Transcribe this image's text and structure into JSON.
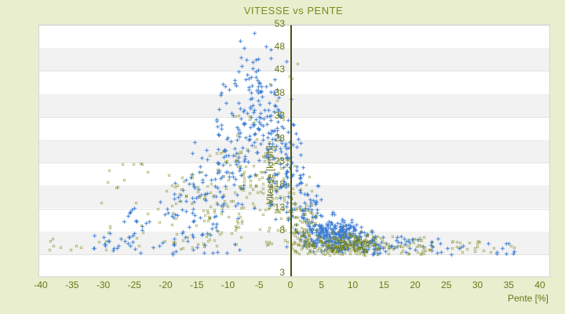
{
  "chart_data": {
    "type": "scatter",
    "title": "VITESSE vs PENTE",
    "xlabel": "Pente [%]",
    "ylabel": "Vitesse [km/h]",
    "x_ticks": [
      -40,
      -35,
      -30,
      -25,
      -20,
      -15,
      -10,
      -5,
      0,
      5,
      10,
      15,
      20,
      25,
      30,
      35,
      40
    ],
    "y_ticks": [
      53,
      48,
      43,
      38,
      33,
      28,
      23,
      18,
      13,
      8
    ],
    "y_axis_min_label": "3",
    "xlim": [
      -40.4,
      41.4
    ],
    "ylim": [
      -1.8,
      53
    ],
    "grid": "horizontal-bands-alternating",
    "legend": "none",
    "zero_line_x": 0,
    "seed": 1337,
    "series": [
      {
        "id": "blue-speed-points",
        "marker": "plus",
        "color": "#3E7FD4",
        "clusters": [
          {
            "n": 14,
            "x": [
              "u",
              -33,
              -26
            ],
            "y": [
              "u",
              3.5,
              8
            ]
          },
          {
            "n": 22,
            "x": [
              "u",
              -27,
              -20
            ],
            "y": [
              "u",
              4,
              15
            ]
          },
          {
            "n": 34,
            "x": [
              "u",
              -21,
              -15
            ],
            "y": [
              "u",
              5,
              21
            ]
          },
          {
            "n": 48,
            "x": [
              "u",
              -16,
              -11
            ],
            "y": [
              "n",
              17,
              5,
              5,
              29
            ]
          },
          {
            "n": 75,
            "x": [
              "u",
              -12,
              -7.5
            ],
            "y": [
              "n",
              25,
              7,
              8,
              42
            ]
          },
          {
            "n": 115,
            "x": [
              "n",
              -6,
              1.8,
              -10,
              -2.5
            ],
            "y": [
              "n",
              34,
              8.5,
              13,
              52.5
            ]
          },
          {
            "n": 85,
            "x": [
              "u",
              -4,
              -0.5
            ],
            "y": [
              "n",
              27,
              9,
              8,
              48
            ]
          },
          {
            "n": 55,
            "x": [
              "u",
              -1,
              2
            ],
            "y": [
              "n",
              17,
              8,
              4,
              38
            ]
          },
          {
            "n": 55,
            "x": [
              "u",
              1.5,
              5
            ],
            "y": [
              "n",
              11,
              5.5,
              3.5,
              33
            ]
          },
          {
            "n": 280,
            "x": [
              "n",
              7,
              2.4,
              1.5,
              14
            ],
            "y": [
              "n",
              7.2,
              1.8,
              3.5,
              13
            ]
          },
          {
            "n": 60,
            "x": [
              "n",
              10.5,
              3,
              4,
              18
            ],
            "y": [
              "n",
              5.8,
              1.4,
              3,
              10
            ]
          },
          {
            "n": 42,
            "x": [
              "u",
              12,
              26
            ],
            "y": [
              "u",
              3,
              6.5
            ]
          },
          {
            "n": 12,
            "x": [
              "u",
              26,
              36.5
            ],
            "y": [
              "u",
              3,
              5.5
            ]
          },
          {
            "n": 16,
            "x": [
              "u",
              -31,
              -4
            ],
            "y": [
              "u",
              3,
              5.5
            ]
          }
        ]
      },
      {
        "id": "olive-speed-points",
        "marker": "x",
        "color": "#6D7A1A",
        "center_color": "#C2CD4A",
        "clusters": [
          {
            "n": 9,
            "x": [
              "u",
              -40.4,
              -30
            ],
            "y": [
              "u",
              4,
              6.5
            ]
          },
          {
            "n": 26,
            "x": [
              "u",
              -31,
              -20
            ],
            "y": [
              "u",
              4,
              23
            ]
          },
          {
            "n": 42,
            "x": [
              "u",
              -20,
              -13
            ],
            "y": [
              "u",
              4,
              21
            ]
          },
          {
            "n": 52,
            "x": [
              "u",
              -14,
              -8
            ],
            "y": [
              "u",
              4.5,
              26
            ]
          },
          {
            "n": 65,
            "x": [
              "u",
              -9,
              -4
            ],
            "y": [
              "n",
              19,
              7,
              4,
              35
            ]
          },
          {
            "n": 60,
            "x": [
              "u",
              -4,
              0.5
            ],
            "y": [
              "n",
              14,
              7,
              3.5,
              33
            ]
          },
          {
            "n": 85,
            "x": [
              "u",
              0,
              4
            ],
            "y": [
              "n",
              8,
              4,
              3,
              24
            ]
          },
          {
            "n": 230,
            "x": [
              "n",
              8,
              3.4,
              0.5,
              17
            ],
            "y": [
              "n",
              5,
              1.4,
              2.8,
              9.5
            ]
          },
          {
            "n": 65,
            "x": [
              "u",
              10,
              22
            ],
            "y": [
              "u",
              3,
              7
            ]
          },
          {
            "n": 24,
            "x": [
              "u",
              22,
              33
            ],
            "y": [
              "u",
              3,
              6
            ]
          },
          {
            "n": 7,
            "x": [
              "u",
              -4,
              2
            ],
            "y": [
              "u",
              32,
              45
            ]
          },
          {
            "n": 2,
            "x": [
              "u",
              35,
              41
            ],
            "y": [
              "u",
              4.5,
              6
            ]
          }
        ]
      }
    ]
  },
  "colors": {
    "background": "#E9EECF",
    "title_text": "#7C8B1F",
    "axis_text": "#6B7617",
    "zero_line": "#4C5410",
    "plot_border": "#D6D6D6",
    "band_gray": "#F2F2F2",
    "gridline": "#E3E3E3",
    "series_blue": "#3E7FD4",
    "series_olive": "#6D7A1A",
    "series_olive_center": "#C2CD4A"
  }
}
